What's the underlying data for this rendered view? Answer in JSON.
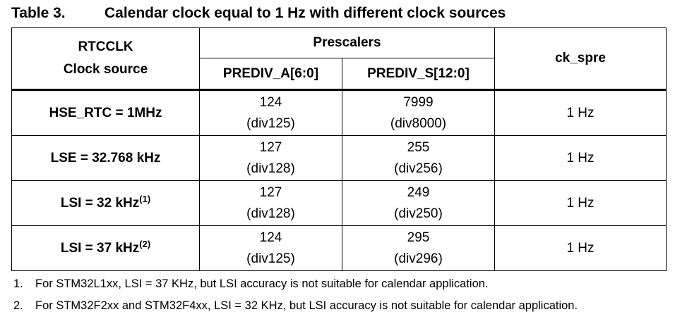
{
  "caption": {
    "number": "Table 3.",
    "title": "Calendar clock equal to 1 Hz with different clock sources"
  },
  "header": {
    "rtcclk_line1": "RTCCLK",
    "rtcclk_line2": "Clock source",
    "prescalers": "Prescalers",
    "prediv_a": "PREDIV_A[6:0]",
    "prediv_s": "PREDIV_S[12:0]",
    "ck_spre": "ck_spre"
  },
  "rows": [
    {
      "source": "HSE_RTC = 1MHz",
      "note": "",
      "a_val": "124",
      "a_div": "(div125)",
      "s_val": "7999",
      "s_div": "(div8000)",
      "ck": "1 Hz"
    },
    {
      "source": "LSE = 32.768 kHz",
      "note": "",
      "a_val": "127",
      "a_div": "(div128)",
      "s_val": "255",
      "s_div": "(div256)",
      "ck": "1 Hz"
    },
    {
      "source": "LSI = 32 kHz",
      "note": "(1)",
      "a_val": "127",
      "a_div": "(div128)",
      "s_val": "249",
      "s_div": "(div250)",
      "ck": "1 Hz"
    },
    {
      "source": "LSI = 37 kHz",
      "note": "(2)",
      "a_val": "124",
      "a_div": "(div125)",
      "s_val": "295",
      "s_div": "(div296)",
      "ck": "1 Hz"
    }
  ],
  "footnotes": [
    {
      "num": "1.",
      "text": "For STM32L1xx, LSI = 37 KHz, but LSI accuracy is not suitable for calendar application."
    },
    {
      "num": "2.",
      "text": "For STM32F2xx and STM32F4xx, LSI = 32 KHz, but LSI accuracy is not suitable for calendar application."
    }
  ]
}
